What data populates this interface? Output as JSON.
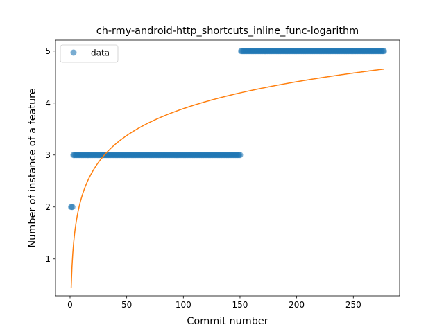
{
  "chart_data": {
    "type": "scatter",
    "title": "ch-rmy-android-http_shortcuts_inline_func-logarithm",
    "xlabel": "Commit number",
    "ylabel": "Number of instance of a feature",
    "xlim": [
      -12.85,
      290.85
    ],
    "ylim": [
      0.29,
      5.21
    ],
    "x_ticks": [
      0,
      50,
      100,
      150,
      200,
      250
    ],
    "y_ticks": [
      1,
      2,
      3,
      4,
      5
    ],
    "grid": false,
    "legend_position": "upper left",
    "series": [
      {
        "name": "data",
        "kind": "points",
        "color": "#1f77b4",
        "segments": [
          {
            "x_start": 1,
            "x_end": 2,
            "y": 2
          },
          {
            "x_start": 3,
            "x_end": 150,
            "y": 3
          },
          {
            "x_start": 151,
            "x_end": 277,
            "y": 5
          }
        ]
      },
      {
        "kind": "line",
        "color": "#ff7f0e",
        "model": "a + b*ln(x)",
        "a": 0.45,
        "b": 0.7475,
        "x_range": [
          1,
          277
        ]
      }
    ]
  }
}
